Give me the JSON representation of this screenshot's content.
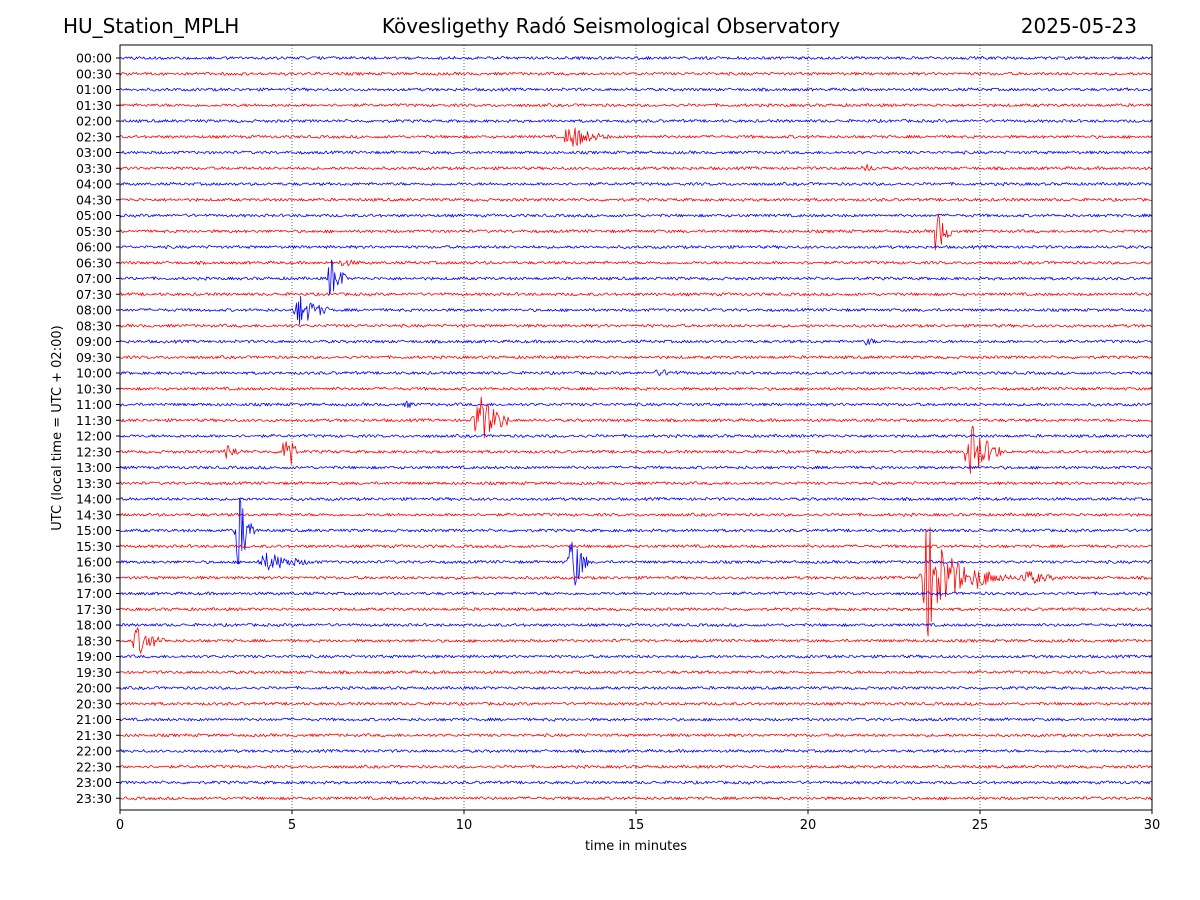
{
  "header": {
    "station": "HU_Station_MPLH",
    "observatory": "Kövesligethy Radó Seismological Observatory",
    "date": "2025-05-23"
  },
  "chart_data": {
    "type": "line",
    "title": "Kövesligethy Radó Seismological Observatory",
    "xlabel": "time in minutes",
    "ylabel": "UTC (local time = UTC + 02:00)",
    "xlim": [
      0,
      30
    ],
    "xticks": [
      "0",
      "5",
      "10",
      "15",
      "20",
      "25",
      "30"
    ],
    "xtick_values": [
      0,
      5,
      10,
      15,
      20,
      25,
      30
    ],
    "grid": "vertical dotted at each x tick",
    "colors": {
      "even_rows": "#0000ff",
      "odd_rows": "#ff0000"
    },
    "rows": [
      {
        "label": "00:00",
        "events": []
      },
      {
        "label": "00:30",
        "events": []
      },
      {
        "label": "01:00",
        "events": []
      },
      {
        "label": "01:30",
        "events": []
      },
      {
        "label": "02:00",
        "events": []
      },
      {
        "label": "02:30",
        "events": [
          {
            "start": 12.8,
            "end": 14.2,
            "amp": 13
          }
        ]
      },
      {
        "label": "03:00",
        "events": []
      },
      {
        "label": "03:30",
        "events": [
          {
            "start": 21.5,
            "end": 22.3,
            "amp": 5
          }
        ]
      },
      {
        "label": "04:00",
        "events": []
      },
      {
        "label": "04:30",
        "events": []
      },
      {
        "label": "05:00",
        "events": []
      },
      {
        "label": "05:30",
        "events": [
          {
            "start": 23.6,
            "end": 24.2,
            "amp": 24
          }
        ]
      },
      {
        "label": "06:00",
        "events": []
      },
      {
        "label": "06:30",
        "events": [
          {
            "start": 6.2,
            "end": 7.6,
            "amp": 4
          }
        ]
      },
      {
        "label": "07:00",
        "events": [
          {
            "start": 6.0,
            "end": 6.6,
            "amp": 25
          }
        ]
      },
      {
        "label": "07:30",
        "events": []
      },
      {
        "label": "08:00",
        "events": [
          {
            "start": 5.0,
            "end": 6.1,
            "amp": 17
          }
        ]
      },
      {
        "label": "08:30",
        "events": []
      },
      {
        "label": "09:00",
        "events": [
          {
            "start": 21.6,
            "end": 22.2,
            "amp": 5
          }
        ]
      },
      {
        "label": "09:30",
        "events": []
      },
      {
        "label": "10:00",
        "events": [
          {
            "start": 15.3,
            "end": 17.2,
            "amp": 4
          }
        ]
      },
      {
        "label": "10:30",
        "events": []
      },
      {
        "label": "11:00",
        "events": [
          {
            "start": 8.2,
            "end": 8.9,
            "amp": 4
          }
        ]
      },
      {
        "label": "11:30",
        "events": [
          {
            "start": 10.2,
            "end": 11.3,
            "amp": 28
          }
        ]
      },
      {
        "label": "12:00",
        "events": []
      },
      {
        "label": "12:30",
        "events": [
          {
            "start": 3.0,
            "end": 3.6,
            "amp": 10
          },
          {
            "start": 4.7,
            "end": 5.1,
            "amp": 45
          },
          {
            "start": 24.5,
            "end": 25.6,
            "amp": 30
          }
        ]
      },
      {
        "label": "13:00",
        "events": []
      },
      {
        "label": "13:30",
        "events": []
      },
      {
        "label": "14:00",
        "events": []
      },
      {
        "label": "14:30",
        "events": []
      },
      {
        "label": "15:00",
        "events": [
          {
            "start": 3.3,
            "end": 3.9,
            "amp": 45
          }
        ]
      },
      {
        "label": "15:30",
        "events": []
      },
      {
        "label": "16:00",
        "events": [
          {
            "start": 3.9,
            "end": 5.8,
            "amp": 10
          },
          {
            "start": 13.0,
            "end": 13.6,
            "amp": 38
          }
        ]
      },
      {
        "label": "16:30",
        "events": [
          {
            "start": 23.2,
            "end": 24.6,
            "amp": 60
          },
          {
            "start": 24.6,
            "end": 26.0,
            "amp": 12
          },
          {
            "start": 26.0,
            "end": 27.6,
            "amp": 8
          }
        ]
      },
      {
        "label": "17:00",
        "events": []
      },
      {
        "label": "17:30",
        "events": []
      },
      {
        "label": "18:00",
        "events": []
      },
      {
        "label": "18:30",
        "events": [
          {
            "start": 0.3,
            "end": 1.3,
            "amp": 16
          }
        ]
      },
      {
        "label": "19:00",
        "events": []
      },
      {
        "label": "19:30",
        "events": []
      },
      {
        "label": "20:00",
        "events": []
      },
      {
        "label": "20:30",
        "events": []
      },
      {
        "label": "21:00",
        "events": []
      },
      {
        "label": "21:30",
        "events": []
      },
      {
        "label": "22:00",
        "events": []
      },
      {
        "label": "22:30",
        "events": []
      },
      {
        "label": "23:00",
        "events": []
      },
      {
        "label": "23:30",
        "events": []
      }
    ]
  }
}
